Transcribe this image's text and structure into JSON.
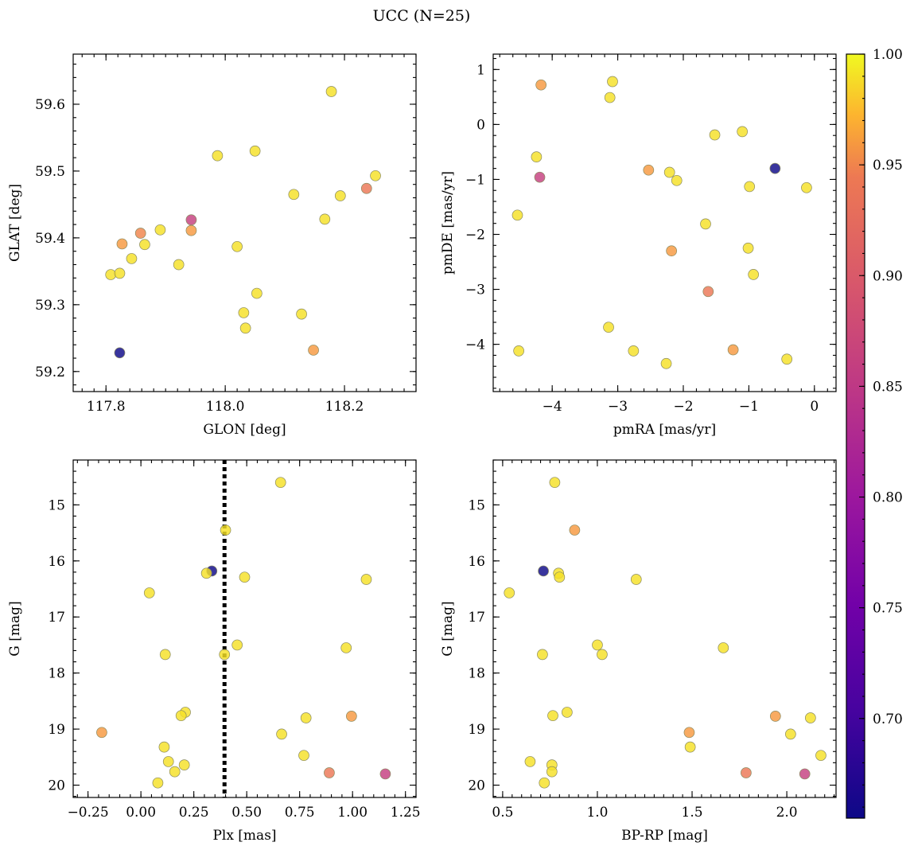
{
  "figure": {
    "title": "UCC (N=25)"
  },
  "colormap": {
    "name": "plasma",
    "vmin": 0.655,
    "vmax": 1.0,
    "ticks": [
      0.7,
      0.75,
      0.8,
      0.85,
      0.9,
      0.95,
      1.0
    ],
    "tick_labels": [
      "0.70",
      "0.75",
      "0.80",
      "0.85",
      "0.90",
      "0.95",
      "1.00"
    ]
  },
  "chart_data": [
    {
      "type": "scatter",
      "xlabel": "GLON [deg]",
      "ylabel": "GLAT [deg]",
      "xlim": [
        117.745,
        118.32
      ],
      "ylim": [
        59.17,
        59.675
      ],
      "y_inverted": false,
      "xticks": [
        117.8,
        118.0,
        118.2
      ],
      "xtick_labels": [
        "117.8",
        "118.0",
        "118.2"
      ],
      "xminor_step": 0.02,
      "yticks": [
        59.2,
        59.3,
        59.4,
        59.5,
        59.6
      ],
      "ytick_labels": [
        "59.2",
        "59.3",
        "59.4",
        "59.5",
        "59.6"
      ],
      "yminor_step": 0.02,
      "points": [
        {
          "x": 117.823,
          "y": 59.228,
          "c": 0.655
        },
        {
          "x": 117.808,
          "y": 59.345,
          "c": 0.99
        },
        {
          "x": 117.823,
          "y": 59.347,
          "c": 0.99
        },
        {
          "x": 117.843,
          "y": 59.369,
          "c": 0.99
        },
        {
          "x": 117.827,
          "y": 59.391,
          "c": 0.96
        },
        {
          "x": 117.858,
          "y": 59.407,
          "c": 0.95
        },
        {
          "x": 117.865,
          "y": 59.39,
          "c": 0.99
        },
        {
          "x": 117.891,
          "y": 59.412,
          "c": 0.99
        },
        {
          "x": 117.922,
          "y": 59.36,
          "c": 0.99
        },
        {
          "x": 117.943,
          "y": 59.427,
          "c": 0.86
        },
        {
          "x": 117.943,
          "y": 59.411,
          "c": 0.96
        },
        {
          "x": 117.987,
          "y": 59.523,
          "c": 0.99
        },
        {
          "x": 118.02,
          "y": 59.387,
          "c": 0.99
        },
        {
          "x": 118.031,
          "y": 59.288,
          "c": 0.99
        },
        {
          "x": 118.034,
          "y": 59.265,
          "c": 0.99
        },
        {
          "x": 118.05,
          "y": 59.53,
          "c": 0.99
        },
        {
          "x": 118.053,
          "y": 59.317,
          "c": 0.99
        },
        {
          "x": 118.115,
          "y": 59.465,
          "c": 0.99
        },
        {
          "x": 118.128,
          "y": 59.286,
          "c": 0.99
        },
        {
          "x": 118.148,
          "y": 59.232,
          "c": 0.96
        },
        {
          "x": 118.167,
          "y": 59.428,
          "c": 0.99
        },
        {
          "x": 118.178,
          "y": 59.619,
          "c": 0.99
        },
        {
          "x": 118.193,
          "y": 59.463,
          "c": 0.99
        },
        {
          "x": 118.237,
          "y": 59.474,
          "c": 0.94
        },
        {
          "x": 118.252,
          "y": 59.493,
          "c": 0.99
        }
      ]
    },
    {
      "type": "scatter",
      "xlabel": "pmRA [mas/yr]",
      "ylabel": "pmDE [mas/yr]",
      "xlim": [
        -4.9,
        0.33
      ],
      "ylim": [
        -4.86,
        1.28
      ],
      "y_inverted": false,
      "xticks": [
        -4,
        -3,
        -2,
        -1,
        0
      ],
      "xtick_labels": [
        "−4",
        "−3",
        "−2",
        "−1",
        "0"
      ],
      "xminor_step": 0.2,
      "yticks": [
        -4,
        -3,
        -2,
        -1,
        0,
        1
      ],
      "ytick_labels": [
        "−4",
        "−3",
        "−2",
        "−1",
        "0",
        "1"
      ],
      "yminor_step": 0.2,
      "points": [
        {
          "x": -4.17,
          "y": 0.72,
          "c": 0.96
        },
        {
          "x": -3.08,
          "y": 0.78,
          "c": 0.99
        },
        {
          "x": -3.12,
          "y": 0.49,
          "c": 0.99
        },
        {
          "x": -1.52,
          "y": -0.19,
          "c": 0.99
        },
        {
          "x": -1.1,
          "y": -0.13,
          "c": 0.99
        },
        {
          "x": -4.24,
          "y": -0.59,
          "c": 0.99
        },
        {
          "x": -4.19,
          "y": -0.96,
          "c": 0.86
        },
        {
          "x": -2.53,
          "y": -0.83,
          "c": 0.96
        },
        {
          "x": -2.21,
          "y": -0.87,
          "c": 0.99
        },
        {
          "x": -2.1,
          "y": -1.02,
          "c": 0.99
        },
        {
          "x": -0.6,
          "y": -0.8,
          "c": 0.655
        },
        {
          "x": -0.99,
          "y": -1.13,
          "c": 0.99
        },
        {
          "x": -0.12,
          "y": -1.15,
          "c": 0.99
        },
        {
          "x": -4.53,
          "y": -1.65,
          "c": 0.99
        },
        {
          "x": -1.66,
          "y": -1.81,
          "c": 0.99
        },
        {
          "x": -2.18,
          "y": -2.3,
          "c": 0.96
        },
        {
          "x": -1.01,
          "y": -2.25,
          "c": 0.99
        },
        {
          "x": -0.93,
          "y": -2.73,
          "c": 0.99
        },
        {
          "x": -1.62,
          "y": -3.04,
          "c": 0.94
        },
        {
          "x": -3.14,
          "y": -3.69,
          "c": 0.99
        },
        {
          "x": -4.51,
          "y": -4.12,
          "c": 0.99
        },
        {
          "x": -2.76,
          "y": -4.12,
          "c": 0.99
        },
        {
          "x": -1.24,
          "y": -4.1,
          "c": 0.96
        },
        {
          "x": -2.26,
          "y": -4.35,
          "c": 0.99
        },
        {
          "x": -0.42,
          "y": -4.27,
          "c": 0.99
        }
      ]
    },
    {
      "type": "scatter",
      "xlabel": "Plx [mas]",
      "ylabel": "G [mag]",
      "xlim": [
        -0.32,
        1.3
      ],
      "ylim": [
        14.2,
        20.22
      ],
      "y_inverted": true,
      "xticks": [
        -0.25,
        0.0,
        0.25,
        0.5,
        0.75,
        1.0,
        1.25
      ],
      "xtick_labels": [
        "−0.25",
        "0.00",
        "0.25",
        "0.50",
        "0.75",
        "1.00",
        "1.25"
      ],
      "xminor_step": 0.05,
      "yticks": [
        15,
        16,
        17,
        18,
        19,
        20
      ],
      "ytick_labels": [
        "15",
        "16",
        "17",
        "18",
        "19",
        "20"
      ],
      "yminor_step": 0.2,
      "vline": {
        "x": 0.395,
        "style": "dotted"
      },
      "points": [
        {
          "x": 0.66,
          "y": 14.6,
          "c": 0.99
        },
        {
          "x": 0.4,
          "y": 15.45,
          "c": 0.99
        },
        {
          "x": 0.335,
          "y": 16.18,
          "c": 0.655
        },
        {
          "x": 0.31,
          "y": 16.22,
          "c": 0.99
        },
        {
          "x": 0.49,
          "y": 16.29,
          "c": 0.99
        },
        {
          "x": 1.065,
          "y": 16.33,
          "c": 0.99
        },
        {
          "x": 0.04,
          "y": 16.57,
          "c": 0.99
        },
        {
          "x": 0.455,
          "y": 17.5,
          "c": 0.99
        },
        {
          "x": 0.97,
          "y": 17.55,
          "c": 0.99
        },
        {
          "x": 0.115,
          "y": 17.67,
          "c": 0.99
        },
        {
          "x": 0.395,
          "y": 17.67,
          "c": 0.99
        },
        {
          "x": 0.21,
          "y": 18.7,
          "c": 0.99
        },
        {
          "x": 0.19,
          "y": 18.76,
          "c": 0.99
        },
        {
          "x": 0.995,
          "y": 18.77,
          "c": 0.96
        },
        {
          "x": 0.78,
          "y": 18.8,
          "c": 0.99
        },
        {
          "x": -0.185,
          "y": 19.06,
          "c": 0.96
        },
        {
          "x": 0.665,
          "y": 19.09,
          "c": 0.99
        },
        {
          "x": 0.11,
          "y": 19.32,
          "c": 0.99
        },
        {
          "x": 0.77,
          "y": 19.47,
          "c": 0.99
        },
        {
          "x": 0.13,
          "y": 19.58,
          "c": 0.99
        },
        {
          "x": 0.205,
          "y": 19.64,
          "c": 0.99
        },
        {
          "x": 0.16,
          "y": 19.76,
          "c": 0.99
        },
        {
          "x": 0.89,
          "y": 19.78,
          "c": 0.94
        },
        {
          "x": 1.155,
          "y": 19.8,
          "c": 0.86
        },
        {
          "x": 0.08,
          "y": 19.96,
          "c": 0.99
        }
      ]
    },
    {
      "type": "scatter",
      "xlabel": "BP-RP [mag]",
      "ylabel": "G [mag]",
      "xlim": [
        0.45,
        2.26
      ],
      "ylim": [
        14.2,
        20.22
      ],
      "y_inverted": true,
      "xticks": [
        0.5,
        1.0,
        1.5,
        2.0
      ],
      "xtick_labels": [
        "0.5",
        "1.0",
        "1.5",
        "2.0"
      ],
      "xminor_step": 0.05,
      "yticks": [
        15,
        16,
        17,
        18,
        19,
        20
      ],
      "ytick_labels": [
        "15",
        "16",
        "17",
        "18",
        "19",
        "20"
      ],
      "yminor_step": 0.2,
      "points": [
        {
          "x": 0.775,
          "y": 14.6,
          "c": 0.99
        },
        {
          "x": 0.88,
          "y": 15.45,
          "c": 0.96
        },
        {
          "x": 0.715,
          "y": 16.18,
          "c": 0.655
        },
        {
          "x": 0.795,
          "y": 16.22,
          "c": 0.99
        },
        {
          "x": 0.8,
          "y": 16.29,
          "c": 0.99
        },
        {
          "x": 1.205,
          "y": 16.33,
          "c": 0.99
        },
        {
          "x": 0.535,
          "y": 16.57,
          "c": 0.99
        },
        {
          "x": 1.0,
          "y": 17.5,
          "c": 0.99
        },
        {
          "x": 1.665,
          "y": 17.55,
          "c": 0.99
        },
        {
          "x": 0.71,
          "y": 17.67,
          "c": 0.99
        },
        {
          "x": 1.025,
          "y": 17.67,
          "c": 0.99
        },
        {
          "x": 0.84,
          "y": 18.7,
          "c": 0.99
        },
        {
          "x": 0.765,
          "y": 18.76,
          "c": 0.99
        },
        {
          "x": 1.94,
          "y": 18.77,
          "c": 0.96
        },
        {
          "x": 2.125,
          "y": 18.8,
          "c": 0.99
        },
        {
          "x": 1.485,
          "y": 19.06,
          "c": 0.96
        },
        {
          "x": 2.02,
          "y": 19.09,
          "c": 0.99
        },
        {
          "x": 1.49,
          "y": 19.32,
          "c": 0.99
        },
        {
          "x": 2.18,
          "y": 19.47,
          "c": 0.99
        },
        {
          "x": 0.645,
          "y": 19.58,
          "c": 0.99
        },
        {
          "x": 0.76,
          "y": 19.64,
          "c": 0.99
        },
        {
          "x": 0.76,
          "y": 19.76,
          "c": 0.99
        },
        {
          "x": 1.785,
          "y": 19.78,
          "c": 0.94
        },
        {
          "x": 2.095,
          "y": 19.8,
          "c": 0.86
        },
        {
          "x": 0.72,
          "y": 19.96,
          "c": 0.99
        }
      ]
    }
  ]
}
